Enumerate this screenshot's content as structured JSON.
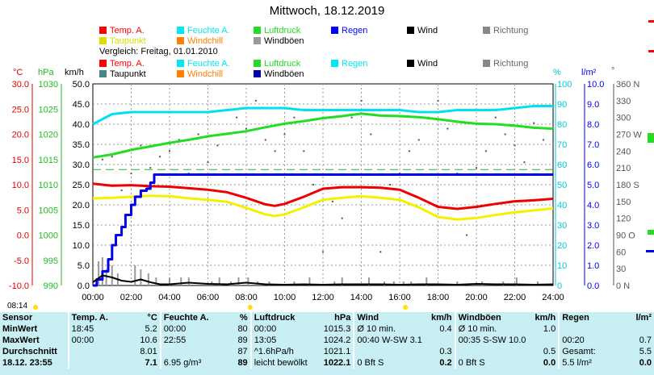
{
  "title": "Mittwoch, 18.12.2019",
  "legend_today": [
    {
      "label": "Temp. A.",
      "color": "#ff0000"
    },
    {
      "label": "Feuchte A.",
      "color": "#00e8f0"
    },
    {
      "label": "Luftdruck",
      "color": "#22dd22"
    },
    {
      "label": "Regen",
      "color": "#0000ff"
    },
    {
      "label": "Wind",
      "color": "#000000"
    },
    {
      "label": "Richtung",
      "color": "#888888"
    },
    {
      "label": "Taupunkt",
      "color": "#dddd00"
    },
    {
      "label": "Windchill",
      "color": "#ff8000"
    },
    {
      "label": "Windböen",
      "color": "#999999"
    }
  ],
  "compare_label": "Vergleich: Freitag, 01.01.2010",
  "legend_compare": [
    {
      "label": "Temp. A.",
      "color": "#ff0000"
    },
    {
      "label": "Feuchte A.",
      "color": "#00e8f0"
    },
    {
      "label": "Luftdruck",
      "color": "#22dd22"
    },
    {
      "label": "Regen",
      "color": "#00e8f0"
    },
    {
      "label": "Wind",
      "color": "#000000"
    },
    {
      "label": "Richtung",
      "color": "#888888"
    },
    {
      "label": "Taupunkt",
      "color": "#448888"
    },
    {
      "label": "Windchill",
      "color": "#ff8000"
    },
    {
      "label": "Windböen",
      "color": "#0000aa"
    }
  ],
  "axis_units": {
    "temp": "°C",
    "press": "hPa",
    "wind": "km/h",
    "hum": "%",
    "rain": "l/m²",
    "dir": "°"
  },
  "timestamp": "08:14",
  "chart_data": {
    "type": "line",
    "x_ticks": [
      "00:00",
      "02:00",
      "04:00",
      "06:00",
      "08:00",
      "10:00",
      "12:00",
      "14:00",
      "16:00",
      "18:00",
      "20:00",
      "22:00",
      "24:00"
    ],
    "axes": {
      "temp": {
        "min": -10,
        "max": 30,
        "ticks": [
          "-10.0",
          "-5.0",
          "0.0",
          "5.0",
          "10.0",
          "15.0",
          "20.0",
          "25.0",
          "30.0"
        ],
        "color": "#e00000"
      },
      "press": {
        "min": 990,
        "max": 1030,
        "ticks": [
          "990",
          "995",
          "1000",
          "1005",
          "1010",
          "1015",
          "1020",
          "1025",
          "1030"
        ],
        "color": "#22bb22"
      },
      "wind": {
        "min": 0,
        "max": 50,
        "ticks": [
          "0.0",
          "5.0",
          "10.0",
          "15.0",
          "20.0",
          "25.0",
          "30.0",
          "35.0",
          "40.0",
          "45.0",
          "50.0"
        ],
        "color": "#000000"
      },
      "hum": {
        "min": 0,
        "max": 100,
        "ticks": [
          "0",
          "10",
          "20",
          "30",
          "40",
          "50",
          "60",
          "70",
          "80",
          "90",
          "100"
        ],
        "color": "#00c8d8"
      },
      "rain": {
        "min": 0,
        "max": 10,
        "ticks": [
          "0.0",
          "1.0",
          "2.0",
          "3.0",
          "4.0",
          "5.0",
          "6.0",
          "7.0",
          "8.0",
          "9.0",
          "10.0"
        ],
        "color": "#0000ee"
      },
      "dir": {
        "min": 0,
        "max": 360,
        "ticks": [
          "0 N",
          "30",
          "60",
          "90 O",
          "120",
          "150",
          "180 S",
          "210",
          "240",
          "270 W",
          "300",
          "330",
          "360 N"
        ],
        "color": "#555555"
      }
    },
    "series": [
      {
        "name": "Temp. A.",
        "axis": "temp",
        "color": "#ee0000",
        "width": 3,
        "x": [
          0,
          1,
          2,
          3,
          4,
          5,
          6,
          7,
          8,
          9,
          9.5,
          10,
          11,
          12,
          13,
          14,
          15,
          16,
          17,
          18,
          19,
          20,
          21,
          22,
          23,
          24
        ],
        "y": [
          10.2,
          9.8,
          9.9,
          9.7,
          9.6,
          9.3,
          9.0,
          8.5,
          7.4,
          6.1,
          5.8,
          6.2,
          7.6,
          9.2,
          9.5,
          9.5,
          9.4,
          9.0,
          7.4,
          5.6,
          5.2,
          5.6,
          6.2,
          6.7,
          6.9,
          7.2
        ]
      },
      {
        "name": "Taupunkt",
        "axis": "temp",
        "color": "#f2f200",
        "width": 3,
        "x": [
          0,
          1,
          2,
          3,
          4,
          5,
          6,
          7,
          8,
          9,
          9.5,
          10,
          11,
          12,
          13,
          14,
          15,
          16,
          17,
          18,
          19,
          20,
          21,
          22,
          23,
          24
        ],
        "y": [
          7.3,
          7.4,
          7.6,
          7.8,
          7.7,
          7.3,
          7.0,
          6.6,
          5.4,
          4.1,
          3.8,
          4.1,
          5.5,
          7.0,
          7.4,
          7.7,
          7.4,
          7.0,
          5.5,
          3.6,
          3.1,
          3.4,
          4.0,
          4.5,
          4.9,
          5.3
        ]
      },
      {
        "name": "Feuchte A.",
        "axis": "hum",
        "color": "#00e0f0",
        "width": 3,
        "x": [
          0,
          1,
          2,
          3,
          4,
          5,
          6,
          7,
          8,
          9,
          10,
          11,
          12,
          13,
          14,
          15,
          16,
          17,
          18,
          19,
          20,
          21,
          22,
          23,
          24
        ],
        "y": [
          80,
          85,
          86,
          86,
          86,
          86,
          86,
          87,
          88,
          88,
          88,
          87,
          87,
          87,
          87,
          87,
          87,
          86,
          86,
          87,
          87,
          87,
          88,
          89,
          89
        ]
      },
      {
        "name": "Luftdruck",
        "axis": "press",
        "color": "#22dd22",
        "width": 3,
        "x": [
          0,
          1,
          2,
          3,
          4,
          5,
          6,
          7,
          8,
          9,
          10,
          11,
          12,
          13,
          14,
          15,
          16,
          17,
          18,
          19,
          20,
          21,
          22,
          23,
          24
        ],
        "y": [
          1015.4,
          1016.0,
          1016.9,
          1017.6,
          1018.3,
          1018.9,
          1019.6,
          1020.1,
          1020.6,
          1021.4,
          1022.1,
          1022.6,
          1023.2,
          1023.6,
          1024.1,
          1023.7,
          1023.6,
          1023.4,
          1023.0,
          1022.5,
          1022.1,
          1022.0,
          1021.7,
          1021.3,
          1021.1
        ]
      },
      {
        "name": "Regen",
        "axis": "rain",
        "color": "#0000ee",
        "width": 3,
        "x": [
          0,
          0.2,
          0.5,
          0.8,
          1.0,
          1.2,
          1.5,
          1.7,
          2.0,
          2.2,
          2.5,
          2.8,
          3.0,
          3.2,
          24
        ],
        "y": [
          0,
          0.3,
          0.7,
          1.3,
          2.0,
          2.5,
          2.9,
          3.5,
          4.0,
          4.4,
          4.7,
          4.8,
          5.1,
          5.5,
          5.5
        ]
      },
      {
        "name": "Wind",
        "axis": "wind",
        "color": "#000000",
        "width": 2,
        "x": [
          0,
          0.5,
          1,
          1.5,
          2,
          2.5,
          3,
          3.5,
          4,
          5,
          6,
          7,
          8,
          9,
          10,
          11,
          12,
          13,
          14,
          15,
          16,
          17,
          18,
          19,
          20,
          21,
          22,
          23,
          24
        ],
        "y": [
          0.8,
          2.5,
          2.0,
          1.2,
          0.9,
          1.5,
          0.8,
          0.3,
          0.3,
          0.7,
          0.4,
          0.3,
          0.7,
          0.3,
          0.2,
          0.3,
          0.2,
          0.3,
          0.3,
          0.3,
          0.2,
          0.3,
          0.3,
          0.2,
          0.4,
          0.3,
          0.3,
          0.2,
          0.3
        ]
      }
    ],
    "gusts_x": [
      0.3,
      0.5,
      0.7,
      1.0,
      1.3,
      2.2,
      2.5,
      2.9,
      3.3,
      4.0,
      4.6,
      5.0,
      6.2,
      6.6,
      7.2,
      7.6,
      8.1,
      8.6,
      9.2,
      10.5,
      11.3,
      12.6,
      13.0,
      14.4,
      15.2,
      15.7,
      16.2,
      16.6,
      17.4,
      19.0,
      20.3,
      21.4,
      22.1,
      23.2
    ],
    "gusts_y": [
      6,
      7,
      4,
      5,
      3,
      5,
      4,
      3,
      2,
      2,
      2,
      2,
      1,
      2,
      1,
      2,
      2,
      1,
      1,
      1,
      2,
      1,
      2,
      2,
      1,
      1,
      1,
      1,
      2,
      1,
      1,
      1,
      2,
      1
    ],
    "direction_dots": {
      "note": "",
      "x": [
        0.5,
        1,
        1.5,
        2,
        2.5,
        3,
        3.5,
        4,
        4.5,
        5,
        5.5,
        6,
        6.5,
        7,
        7.5,
        8,
        8.5,
        9,
        9.5,
        10,
        10.5,
        11,
        11.5,
        12,
        12.5,
        13,
        13.5,
        14,
        14.5,
        15,
        15.5,
        16,
        16.5,
        17,
        17.5,
        18,
        18.5,
        19,
        19.5,
        20,
        20.5,
        21,
        21.5,
        22,
        22.5,
        23,
        23.5
      ],
      "y": [
        225,
        230,
        170,
        200,
        250,
        210,
        230,
        240,
        260,
        200,
        270,
        220,
        250,
        270,
        300,
        280,
        330,
        260,
        240,
        270,
        300,
        240,
        180,
        60,
        150,
        120,
        300,
        330,
        270,
        60,
        180,
        200,
        240,
        260,
        300,
        330,
        280,
        200,
        90,
        210,
        240,
        300,
        270,
        250,
        220,
        290,
        260
      ]
    },
    "reference_line": {
      "axis": "press",
      "value": 1013,
      "color": "#22bb22"
    }
  },
  "table": {
    "headers": [
      "Sensor",
      "Temp. A.",
      "°C",
      "Feuchte A.",
      "%",
      "Luftdruck",
      "hPa",
      "Wind",
      "km/h",
      "Windböen",
      "km/h",
      "Regen",
      "l/m²"
    ],
    "rows": [
      [
        "MinWert",
        "18:45",
        "5.2",
        "00:00",
        "80",
        "00:00",
        "1015.3",
        "Ø 10 min.",
        "0.4",
        "Ø 10 min.",
        "1.0",
        "",
        ""
      ],
      [
        "MaxWert",
        "00:00",
        "10.6",
        "22:55",
        "89",
        "13:05",
        "1024.2",
        "00:40   W-SW 3.1",
        "",
        "00:35   S-SW 10.0",
        "",
        "00:20",
        "0.7"
      ],
      [
        "Durchschnitt",
        "",
        "8.01",
        "",
        "87",
        "^1.6hPa/h",
        "1021.1",
        "",
        "0.3",
        "",
        "0.5",
        "Gesamt:",
        "5.5"
      ],
      [
        "18.12. 23:55",
        "",
        "7.1",
        "6.95 g/m³",
        "89",
        "leicht bewölkt",
        "1022.1",
        "0 Bft S",
        "0.2",
        "0 Bft S",
        "0.0",
        "5.5 l/m²",
        "0.0"
      ]
    ]
  }
}
